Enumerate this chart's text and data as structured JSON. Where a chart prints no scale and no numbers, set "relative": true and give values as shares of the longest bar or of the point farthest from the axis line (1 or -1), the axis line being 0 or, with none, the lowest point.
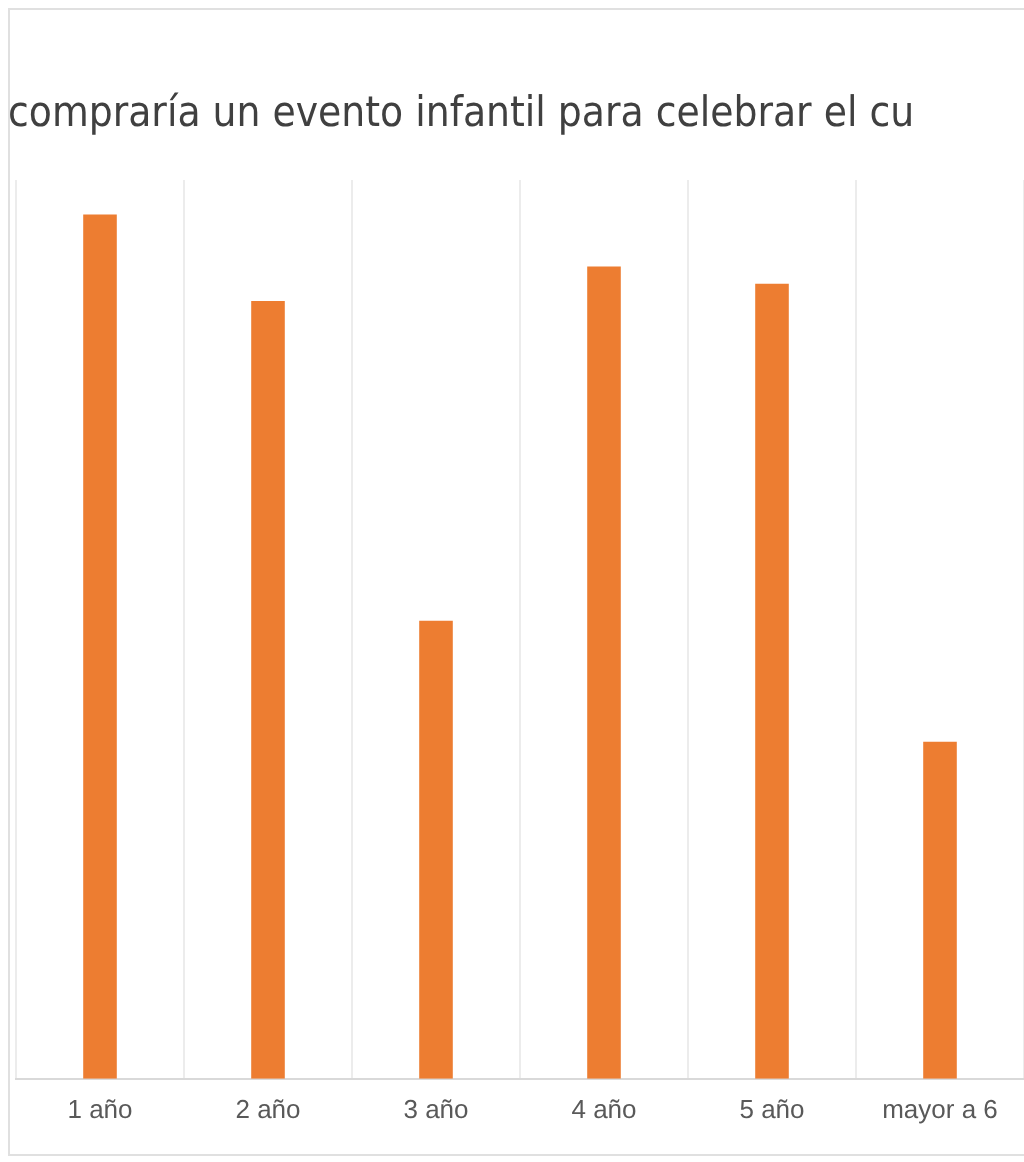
{
  "chart_data": {
    "type": "bar",
    "title": "compraría un evento infantil para celebrar el cu",
    "categories": [
      "1 año",
      "2 año",
      "3 año",
      "4 año",
      "5 año",
      "mayor a 6"
    ],
    "values": [
      1,
      0.9,
      0.53,
      0.94,
      0.92,
      0.39
    ],
    "color": "#ed7d31",
    "relative": true,
    "grid": "x"
  }
}
